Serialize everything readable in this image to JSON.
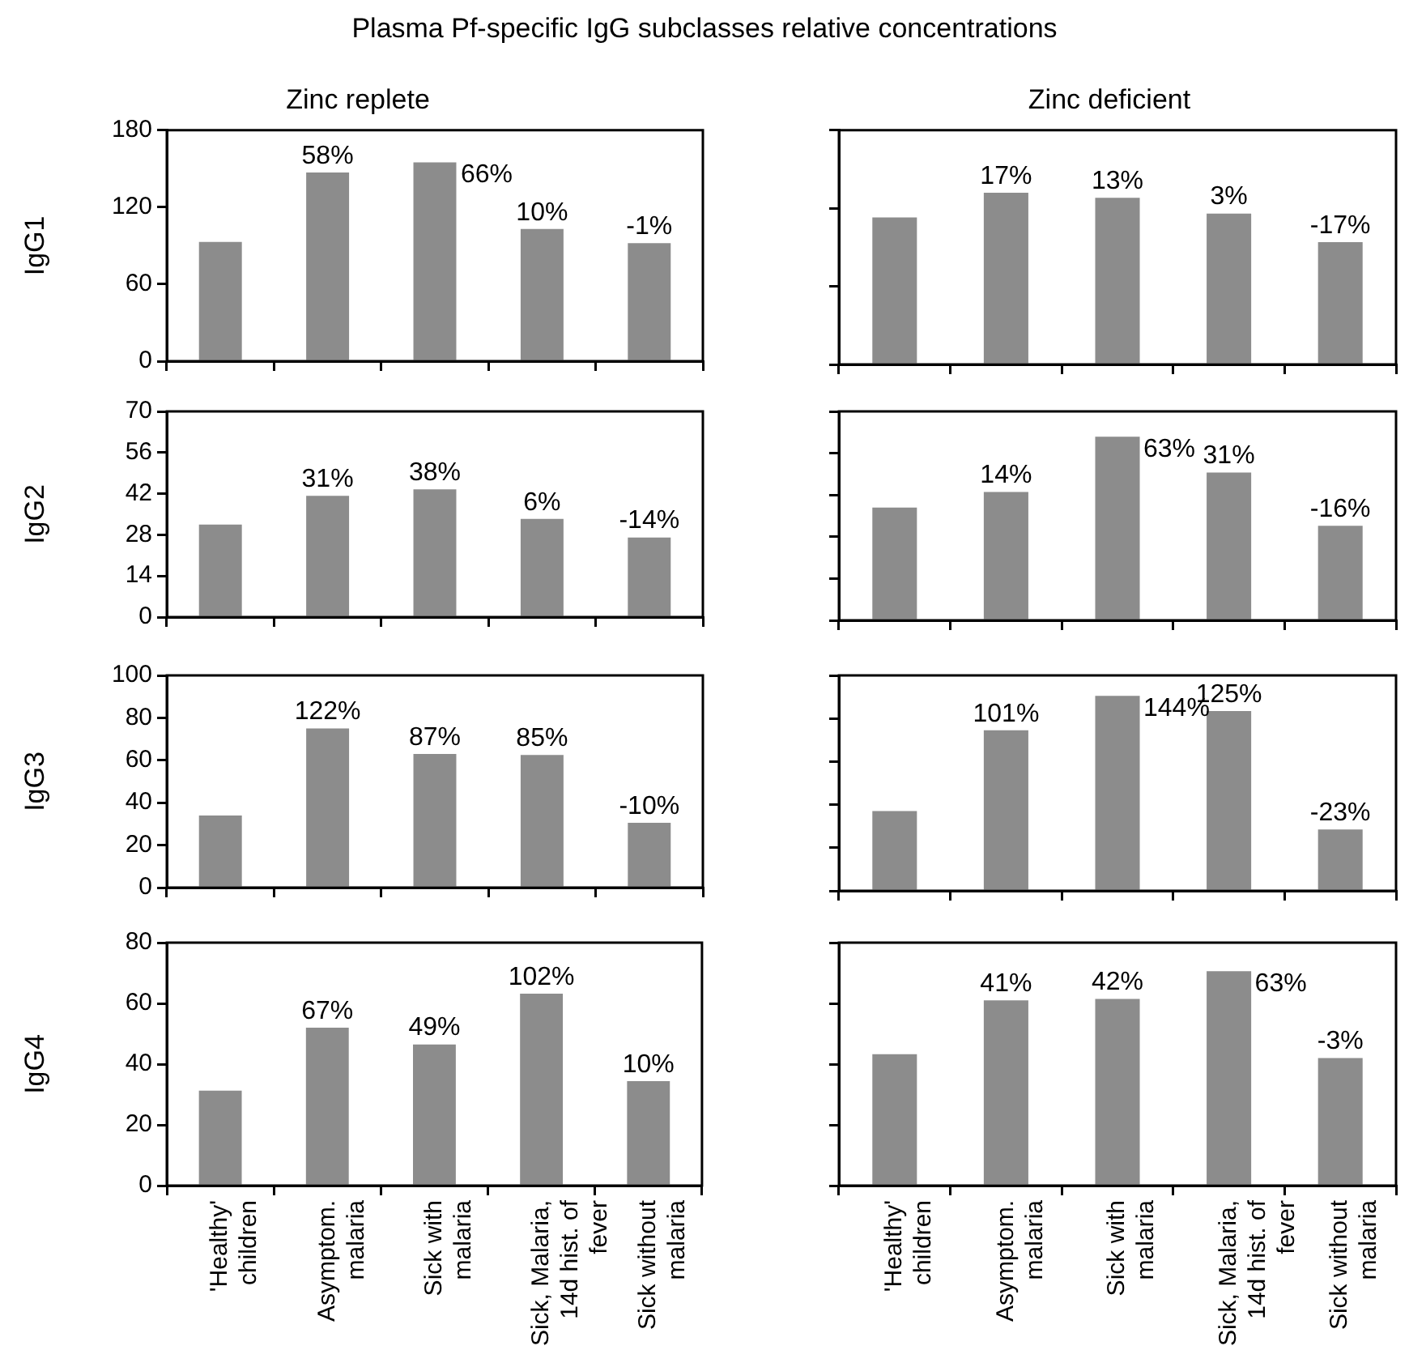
{
  "chart_data": [
    {
      "type": "other",
      "title": "Plasma Pf-specific IgG subclasses relative concentrations"
    },
    {
      "type": "bar",
      "title": "Zinc replete",
      "ylabel": "IgG1",
      "categories": [
        "'Healthy' children",
        "Asymptom. malaria",
        "Sick with malaria",
        "Sick, Malaria, 14d hist. of fever",
        "Sick without malaria"
      ],
      "values": [
        93,
        147,
        155,
        103,
        92
      ],
      "color": "#8c8c8c",
      "ylim": [
        0,
        180
      ],
      "yticks": [
        0,
        60,
        120,
        180
      ],
      "tick_labels": "y",
      "annotations": [
        {
          "text": "58%",
          "x": "Asymptom. malaria",
          "y": 147
        },
        {
          "text": "66%",
          "x": "Sick with malaria",
          "y": 155
        },
        {
          "text": "10%",
          "x": "Sick, Malaria, 14d hist. of fever",
          "y": 103
        },
        {
          "text": "-1%",
          "x": "Sick without malaria",
          "y": 92
        }
      ]
    },
    {
      "type": "bar",
      "title": "Zinc deficient",
      "categories": [
        "'Healthy' children",
        "Asymptom. malaria",
        "Sick with malaria",
        "Sick, Malaria, 14d hist. of fever",
        "Sick without malaria"
      ],
      "values": [
        113,
        132,
        128,
        116,
        94
      ],
      "color": "#8c8c8c",
      "ylim": [
        0,
        180
      ],
      "yticks": [
        0,
        60,
        120,
        180
      ],
      "tick_labels": false,
      "annotations": [
        {
          "text": "17%",
          "x": "Asymptom. malaria",
          "y": 132
        },
        {
          "text": "13%",
          "x": "Sick with malaria",
          "y": 128
        },
        {
          "text": "3%",
          "x": "Sick, Malaria, 14d hist. of fever",
          "y": 116
        },
        {
          "text": "-17%",
          "x": "Sick without malaria",
          "y": 94
        }
      ]
    },
    {
      "type": "bar",
      "ylabel": "IgG2",
      "categories": [
        "'Healthy' children",
        "Asymptom. malaria",
        "Sick with malaria",
        "Sick, Malaria, 14d hist. of fever",
        "Sick without malaria"
      ],
      "values": [
        31.5,
        41.3,
        43.5,
        33.4,
        27.1
      ],
      "color": "#8c8c8c",
      "ylim": [
        0,
        70
      ],
      "yticks": [
        0,
        14,
        28,
        42,
        56,
        70
      ],
      "tick_labels": "y",
      "annotations": [
        {
          "text": "31%",
          "x": "Asymptom. malaria",
          "y": 41.3
        },
        {
          "text": "38%",
          "x": "Sick with malaria",
          "y": 43.5
        },
        {
          "text": "6%",
          "x": "Sick, Malaria, 14d hist. of fever",
          "y": 33.4
        },
        {
          "text": "-14%",
          "x": "Sick without malaria",
          "y": 27.1
        }
      ]
    },
    {
      "type": "bar",
      "categories": [
        "'Healthy' children",
        "Asymptom. malaria",
        "Sick with malaria",
        "Sick, Malaria, 14d hist. of fever",
        "Sick without malaria"
      ],
      "values": [
        37.8,
        43,
        61.5,
        49.5,
        31.7
      ],
      "color": "#8c8c8c",
      "ylim": [
        0,
        70
      ],
      "yticks": [
        0,
        14,
        28,
        42,
        56,
        70
      ],
      "tick_labels": false,
      "annotations": [
        {
          "text": "14%",
          "x": "Asymptom. malaria",
          "y": 43
        },
        {
          "text": "63%",
          "x": "Sick with malaria",
          "y": 61.5
        },
        {
          "text": "31%",
          "x": "Sick, Malaria, 14d hist. of fever",
          "y": 49.5
        },
        {
          "text": "-16%",
          "x": "Sick without malaria",
          "y": 31.7
        }
      ]
    },
    {
      "type": "bar",
      "ylabel": "IgG3",
      "categories": [
        "'Healthy' children",
        "Asymptom. malaria",
        "Sick with malaria",
        "Sick, Malaria, 14d hist. of fever",
        "Sick without malaria"
      ],
      "values": [
        34,
        75,
        63,
        62.5,
        30.5
      ],
      "color": "#8c8c8c",
      "ylim": [
        0,
        100
      ],
      "yticks": [
        0,
        20,
        40,
        60,
        80,
        100
      ],
      "tick_labels": "y",
      "annotations": [
        {
          "text": "122%",
          "x": "Asymptom. malaria",
          "y": 75
        },
        {
          "text": "87%",
          "x": "Sick with malaria",
          "y": 63
        },
        {
          "text": "85%",
          "x": "Sick, Malaria, 14d hist. of fever",
          "y": 62.5
        },
        {
          "text": "-10%",
          "x": "Sick without malaria",
          "y": 30.5
        }
      ]
    },
    {
      "type": "bar",
      "categories": [
        "'Healthy' children",
        "Asymptom. malaria",
        "Sick with malaria",
        "Sick, Malaria, 14d hist. of fever",
        "Sick without malaria"
      ],
      "values": [
        37,
        74.5,
        90.5,
        83.5,
        28.5
      ],
      "color": "#8c8c8c",
      "ylim": [
        0,
        100
      ],
      "yticks": [
        0,
        20,
        40,
        60,
        80,
        100
      ],
      "tick_labels": false,
      "annotations": [
        {
          "text": "101%",
          "x": "Asymptom. malaria",
          "y": 74.5
        },
        {
          "text": "144%",
          "x": "Sick with malaria",
          "y": 90.5
        },
        {
          "text": "125%",
          "x": "Sick, Malaria, 14d hist. of fever",
          "y": 83.5
        },
        {
          "text": "-23%",
          "x": "Sick without malaria",
          "y": 28.5
        }
      ]
    },
    {
      "type": "bar",
      "ylabel": "IgG4",
      "categories": [
        "'Healthy' children",
        "Asymptom. malaria",
        "Sick with malaria",
        "Sick, Malaria, 14d hist. of fever",
        "Sick without malaria"
      ],
      "values": [
        31.3,
        52,
        46.5,
        63.2,
        34.4
      ],
      "color": "#8c8c8c",
      "ylim": [
        0,
        80
      ],
      "yticks": [
        0,
        20,
        40,
        60,
        80
      ],
      "annotations": [
        {
          "text": "67%",
          "x": "Asymptom. malaria",
          "y": 52
        },
        {
          "text": "49%",
          "x": "Sick with malaria",
          "y": 46.5
        },
        {
          "text": "102%",
          "x": "Sick, Malaria, 14d hist. of fever",
          "y": 63.2
        },
        {
          "text": "10%",
          "x": "Sick without malaria",
          "y": 34.4
        }
      ]
    },
    {
      "type": "bar",
      "categories": [
        "'Healthy' children",
        "Asymptom. malaria",
        "Sick with malaria",
        "Sick, Malaria, 14d hist. of fever",
        "Sick without malaria"
      ],
      "values": [
        43.3,
        61,
        61.5,
        70.6,
        42
      ],
      "color": "#8c8c8c",
      "ylim": [
        0,
        80
      ],
      "yticks": [
        0,
        20,
        40,
        60,
        80
      ],
      "tick_labels": "x",
      "annotations": [
        {
          "text": "41%",
          "x": "Asymptom. malaria",
          "y": 61
        },
        {
          "text": "42%",
          "x": "Sick with malaria",
          "y": 61.5
        },
        {
          "text": "63%",
          "x": "Sick, Malaria, 14d hist. of fever",
          "y": 70.6
        },
        {
          "text": "-3%",
          "x": "Sick without malaria",
          "y": 42
        }
      ]
    }
  ]
}
